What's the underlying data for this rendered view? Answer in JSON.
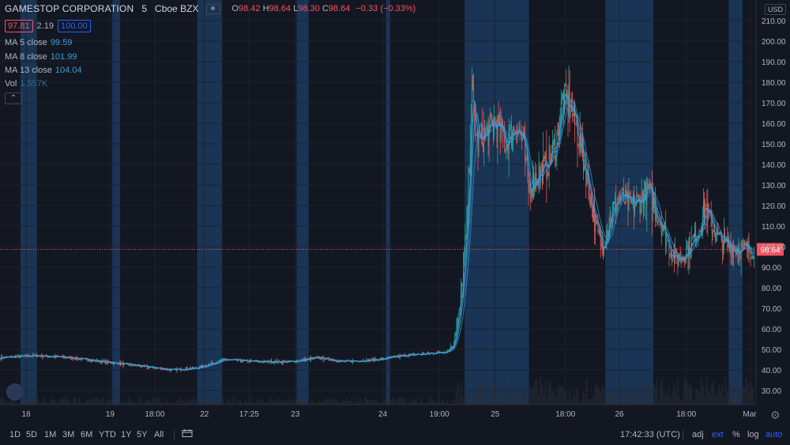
{
  "header": {
    "symbol": "GAMESTOP CORPORATION",
    "timeframe": "5",
    "exchange": "Cboe BZX",
    "ohlc": {
      "o_label": "O",
      "o": "98.42",
      "h_label": "H",
      "h": "98.64",
      "l_label": "L",
      "l": "98.30",
      "c_label": "C",
      "c": "98.64",
      "change": "−0.33 (−0.33%)"
    },
    "bid": "97.81",
    "spread": "2.19",
    "ask": "100.00"
  },
  "indicators": [
    {
      "label": "MA 5 close",
      "value": "99.59"
    },
    {
      "label": "MA 8 close",
      "value": "101.99"
    },
    {
      "label": "MA 13 close",
      "value": "104.04"
    },
    {
      "label": "Vol",
      "value": "1.557K"
    }
  ],
  "currency": "USD",
  "last_price_label": "98.64",
  "collapse_icon": "chevron-up-icon",
  "logo_icon": "tradingview-cloud-icon",
  "settings_icon": "gear-icon",
  "bottom_toolbar": {
    "ranges": [
      "1D",
      "5D",
      "1M",
      "3M",
      "6M",
      "YTD",
      "1Y",
      "5Y",
      "All"
    ],
    "compare_icon": "compare-calendar-icon",
    "clock": "17:42:33 (UTC)",
    "options": [
      "adj",
      "ext",
      "%",
      "log",
      "auto"
    ],
    "active_options": [
      "ext",
      "auto"
    ]
  },
  "colors": {
    "background": "#131722",
    "session_band": "#1c3f66",
    "grid": "#1e222d",
    "up": "#26a69a",
    "down": "#ef5350",
    "ma": "#3d9bd6",
    "price_line": "#f7525f",
    "active_option": "#2962ff"
  },
  "chart_data": {
    "type": "candlestick",
    "y_axis": {
      "ticks": [
        30,
        40,
        50,
        60,
        70,
        80,
        90,
        100,
        110,
        120,
        130,
        140,
        150,
        160,
        170,
        180,
        190,
        200,
        210
      ],
      "tick_labels": [
        "30.00",
        "40.00",
        "50.00",
        "60.00",
        "70.00",
        "80.00",
        "90.00",
        "100.00",
        "110.00",
        "120.00",
        "130.00",
        "140.00",
        "150.00",
        "160.00",
        "170.00",
        "180.00",
        "190.00",
        "200.00",
        "210.00"
      ],
      "range": [
        25,
        215
      ]
    },
    "x_axis": {
      "labels": [
        "18",
        "19",
        "18:00",
        "22",
        "17:25",
        "23",
        "24",
        "19:00",
        "25",
        "18:00",
        "26",
        "18:00",
        "Mar"
      ],
      "label_index": [
        30,
        128,
        180,
        238,
        290,
        344,
        446,
        512,
        577,
        659,
        722,
        800,
        874
      ],
      "bar_count": 880
    },
    "last_price": 98.64,
    "price_path": [
      [
        0,
        46
      ],
      [
        40,
        47
      ],
      [
        80,
        46
      ],
      [
        120,
        44
      ],
      [
        160,
        42
      ],
      [
        200,
        40
      ],
      [
        230,
        41
      ],
      [
        260,
        45
      ],
      [
        300,
        44
      ],
      [
        340,
        44
      ],
      [
        370,
        46
      ],
      [
        400,
        44
      ],
      [
        440,
        45
      ],
      [
        470,
        47
      ],
      [
        500,
        48
      ],
      [
        520,
        49
      ],
      [
        528,
        52
      ],
      [
        536,
        70
      ],
      [
        544,
        110
      ],
      [
        550,
        175
      ],
      [
        556,
        150
      ],
      [
        566,
        155
      ],
      [
        578,
        160
      ],
      [
        590,
        150
      ],
      [
        602,
        160
      ],
      [
        610,
        150
      ],
      [
        616,
        128
      ],
      [
        626,
        135
      ],
      [
        638,
        140
      ],
      [
        648,
        150
      ],
      [
        656,
        172
      ],
      [
        666,
        168
      ],
      [
        676,
        150
      ],
      [
        686,
        130
      ],
      [
        694,
        110
      ],
      [
        702,
        100
      ],
      [
        712,
        115
      ],
      [
        722,
        125
      ],
      [
        734,
        120
      ],
      [
        746,
        122
      ],
      [
        756,
        128
      ],
      [
        764,
        118
      ],
      [
        772,
        110
      ],
      [
        780,
        100
      ],
      [
        788,
        93
      ],
      [
        796,
        96
      ],
      [
        806,
        102
      ],
      [
        814,
        108
      ],
      [
        822,
        120
      ],
      [
        830,
        110
      ],
      [
        840,
        103
      ],
      [
        850,
        100
      ],
      [
        862,
        99
      ],
      [
        874,
        98.64
      ]
    ],
    "moving_averages": [
      {
        "label": "MA 5 close",
        "period": 5,
        "last": 99.59
      },
      {
        "label": "MA 8 close",
        "period": 8,
        "last": 101.99
      },
      {
        "label": "MA 13 close",
        "period": 13,
        "last": 104.04
      }
    ],
    "volume_last": "1.557K",
    "extended_session_bands": [
      [
        24,
        43
      ],
      [
        131,
        140
      ],
      [
        230,
        259
      ],
      [
        346,
        360
      ],
      [
        450,
        455
      ],
      [
        542,
        617
      ],
      [
        706,
        762
      ],
      [
        850,
        866
      ]
    ]
  }
}
